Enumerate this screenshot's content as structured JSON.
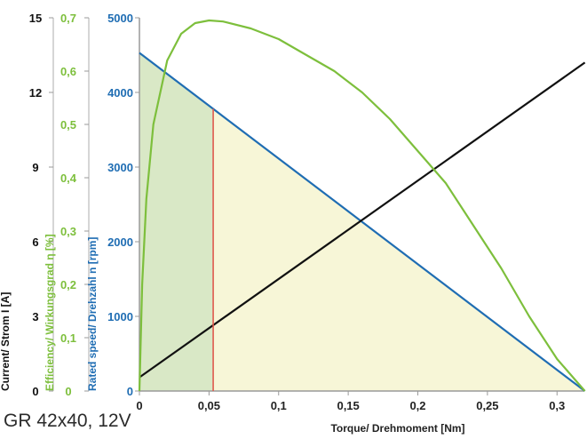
{
  "caption": "GR 42x40, 12V",
  "chart_data": {
    "type": "line",
    "xlabel": "Torque/ Drehmoment [Nm]",
    "x_ticks": [
      "0",
      "0,05",
      "0,1",
      "0,15",
      "0,2",
      "0,25",
      "0,3"
    ],
    "xlim": [
      0,
      0.32
    ],
    "axes": [
      {
        "key": "current",
        "label": "Current/ Strom I [A]",
        "ticks": [
          "0",
          "3",
          "6",
          "9",
          "12",
          "15"
        ],
        "range": [
          0,
          15
        ],
        "color": "#111111"
      },
      {
        "key": "efficiency",
        "label": "Efficiency/ Wirkungsgrad η [%]",
        "ticks": [
          "0",
          "0,1",
          "0,2",
          "0,3",
          "0,4",
          "0,5",
          "0,6",
          "0,7"
        ],
        "range": [
          0,
          0.7
        ],
        "color": "#7dbf3c"
      },
      {
        "key": "speed",
        "label": "Rated speed/ Drehzahl n [rpm]",
        "ticks": [
          "0",
          "1000",
          "2000",
          "3000",
          "4000",
          "5000"
        ],
        "range": [
          0,
          5000
        ],
        "color": "#1f6db3"
      }
    ],
    "series": [
      {
        "key": "speed",
        "axis": "speed",
        "color": "#1f6db3",
        "x": [
          0,
          0.32
        ],
        "y": [
          4530,
          0
        ]
      },
      {
        "key": "current",
        "axis": "current",
        "color": "#111111",
        "x": [
          0,
          0.32
        ],
        "y": [
          0.55,
          13.2
        ]
      },
      {
        "key": "efficiency",
        "axis": "efficiency",
        "color": "#7dbf3c",
        "x": [
          0,
          0.002,
          0.005,
          0.01,
          0.02,
          0.03,
          0.04,
          0.05,
          0.06,
          0.08,
          0.1,
          0.12,
          0.14,
          0.16,
          0.18,
          0.2,
          0.22,
          0.24,
          0.26,
          0.28,
          0.3,
          0.32
        ],
        "y": [
          0,
          0.2,
          0.36,
          0.5,
          0.62,
          0.67,
          0.69,
          0.695,
          0.693,
          0.68,
          0.66,
          0.63,
          0.6,
          0.56,
          0.51,
          0.45,
          0.39,
          0.31,
          0.23,
          0.14,
          0.06,
          0
        ]
      }
    ],
    "rated_torque": 0.053,
    "rated_color": "#e05a4e",
    "fill_colors": {
      "left": "#d9e8c6",
      "right": "#f7f6d7"
    },
    "grid": false,
    "legend": "none"
  }
}
